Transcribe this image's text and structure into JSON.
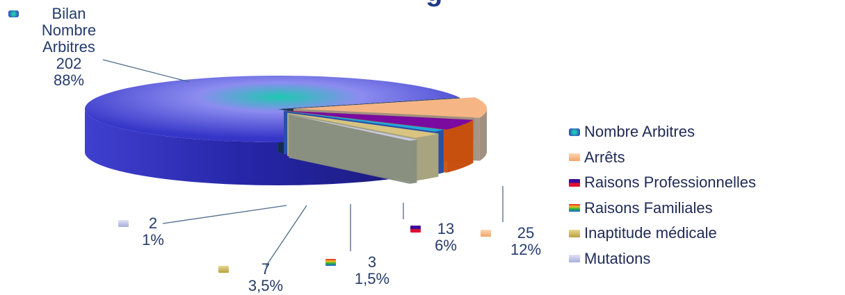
{
  "title_fragment": "g",
  "chart_data": {
    "type": "pie",
    "categories": [
      "Nombre Arbitres",
      "Arrêts",
      "Raisons Professionnelles",
      "Raisons Familiales",
      "Inaptitude médicale",
      "Mutations"
    ],
    "values": [
      202,
      25,
      13,
      3,
      7,
      2
    ],
    "percent_labels": [
      "88%",
      "12%",
      "6%",
      "1,5%",
      "3,5%",
      "1%"
    ],
    "value_labels": [
      "202",
      "25",
      "13",
      "3",
      "7",
      "2"
    ],
    "series_header": "Bilan",
    "legend_position": "right",
    "legend": [
      {
        "label": "Nombre Arbitres",
        "color": "#2a8fb5"
      },
      {
        "label": "Arrêts",
        "color": "#f4b27a"
      },
      {
        "label": "Raisons Professionnelles",
        "color": "#7a0c3c"
      },
      {
        "label": "Raisons Familiales",
        "color": "#e0b020"
      },
      {
        "label": "Inaptitude médicale",
        "color": "#c8b048"
      },
      {
        "label": "Mutations",
        "color": "#b8bde0"
      }
    ],
    "colors": {
      "arbitres_center": "#1ec8b0",
      "arbitres_mid": "#8c8cf0",
      "arbitres_edge": "#3535c8",
      "arbitres_side": "#2626a8",
      "arrets_top": "#f6b585",
      "arrets_side": "#a09080",
      "pro_top": "#7a0aa0",
      "pro_side": "#c85010",
      "fam_top": "#23a8d8",
      "fam_side": "#2850a8",
      "inapt_top": "#d8c480",
      "inapt_side": "#a8a480",
      "mut_top": "#c8c8e0",
      "mut_side": "#8a9080",
      "leader": "#4a6a8a"
    }
  }
}
